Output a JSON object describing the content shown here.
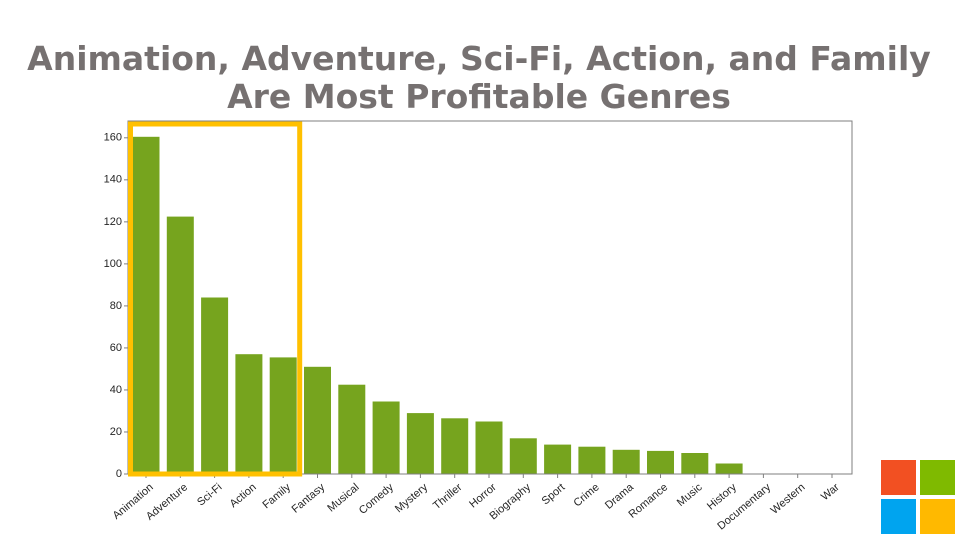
{
  "slide": {
    "title_line1": "Animation, Adventure, Sci-Fi, Action, and Family",
    "title_line2": "Are Most Profitable Genres"
  },
  "highlight": {
    "categories": [
      "Animation",
      "Adventure",
      "Sci-Fi",
      "Action",
      "Family"
    ],
    "color": "#FFC000"
  },
  "logo": {
    "colors": [
      "#F25022",
      "#7FBA00",
      "#00A4EF",
      "#FFB900"
    ]
  },
  "chart_data": {
    "type": "bar",
    "categories": [
      "Animation",
      "Adventure",
      "Sci-Fi",
      "Action",
      "Family",
      "Fantasy",
      "Musical",
      "Comedy",
      "Mystery",
      "Thriller",
      "Horror",
      "Biography",
      "Sport",
      "Crime",
      "Drama",
      "Romance",
      "Music",
      "History",
      "Documentary",
      "Western",
      "War"
    ],
    "values": [
      160.5,
      122.5,
      84,
      57,
      55.5,
      51,
      42.5,
      34.5,
      29,
      26.5,
      25,
      17,
      14,
      13,
      11.5,
      11,
      10,
      5,
      0,
      0,
      0
    ],
    "yticks": [
      0,
      20,
      40,
      60,
      80,
      100,
      120,
      140,
      160
    ],
    "ylim": [
      0,
      168
    ],
    "bar_color": "#76A41E",
    "grid": false,
    "title": "",
    "xlabel": "",
    "ylabel": ""
  }
}
